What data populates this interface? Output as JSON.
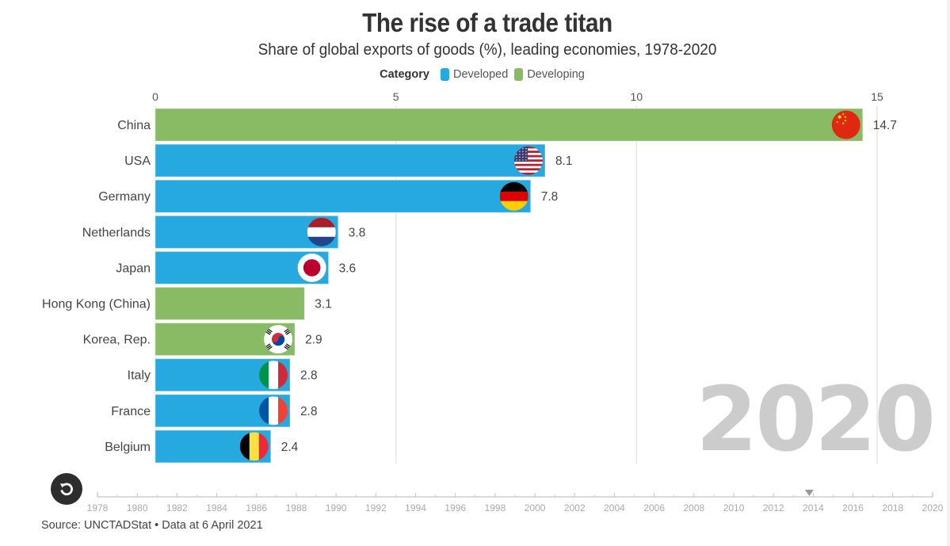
{
  "header": {
    "title": "The rise of a trade titan",
    "subtitle": "Share of global exports of goods (%), leading economies, 1978-2020"
  },
  "legend": {
    "title": "Category",
    "items": [
      {
        "label": "Developed",
        "color": "#26a9df"
      },
      {
        "label": "Developing",
        "color": "#88bb64"
      }
    ]
  },
  "chart_data": {
    "type": "bar",
    "orientation": "horizontal",
    "title": "The rise of a trade titan",
    "subtitle": "Share of global exports of goods (%), leading economies, 1978-2020",
    "xlabel": "",
    "ylabel": "",
    "xlim": [
      0,
      15
    ],
    "xticks": [
      "0",
      "5",
      "10",
      "15"
    ],
    "grid": true,
    "legend_position": "top-center",
    "current_year": "2020",
    "categories": [
      "China",
      "USA",
      "Germany",
      "Netherlands",
      "Japan",
      "Hong Kong (China)",
      "Korea, Rep.",
      "Italy",
      "France",
      "Belgium"
    ],
    "values": [
      14.7,
      8.1,
      7.8,
      3.8,
      3.6,
      3.1,
      2.9,
      2.8,
      2.8,
      2.4
    ],
    "value_labels": [
      "14.7",
      "8.1",
      "7.8",
      "3.8",
      "3.6",
      "3.1",
      "2.9",
      "2.8",
      "2.8",
      "2.4"
    ],
    "groups": [
      "Developing",
      "Developed",
      "Developed",
      "Developed",
      "Developed",
      "Developing",
      "Developing",
      "Developed",
      "Developed",
      "Developed"
    ],
    "flags": [
      "china-flag",
      "usa-flag",
      "germany-flag",
      "netherlands-flag",
      "japan-flag",
      null,
      "korea-flag",
      "italy-flag",
      "france-flag",
      "belgium-flag"
    ]
  },
  "colors": {
    "Developed": "#26a9df",
    "Developing": "#88bb64",
    "year_watermark": "#cccccc"
  },
  "timeline": {
    "years": [
      "1978",
      "1980",
      "1982",
      "1984",
      "1986",
      "1988",
      "1990",
      "1992",
      "1994",
      "1996",
      "1998",
      "2000",
      "2002",
      "2004",
      "2006",
      "2008",
      "2010",
      "2012",
      "2014",
      "2016",
      "2018",
      "2020"
    ],
    "start_year": 1978,
    "end_year": 2020,
    "marker_year": 2013.8
  },
  "controls": {
    "replay_icon": "replay-icon"
  },
  "footer": {
    "source": "Source: UNCTADStat • Data at 6 April 2021"
  }
}
